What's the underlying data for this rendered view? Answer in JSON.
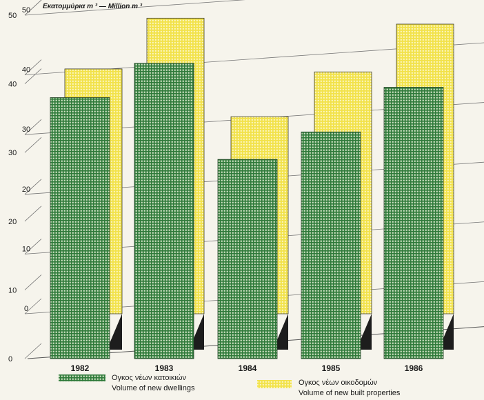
{
  "chart_data": {
    "type": "bar",
    "unit_label": "Εκατομμύρια m ³ — Million m ³",
    "categories": [
      "1982",
      "1983",
      "1984",
      "1985",
      "1986"
    ],
    "series": [
      {
        "name": "Ογκος νέων κατοικιών / Volume of new dwellings",
        "name_el": "Ογκος νέων κατοικιών",
        "name_en": "Volume of new dwellings",
        "color": "#2f7a3a",
        "values": [
          38,
          43,
          29,
          33,
          39.5
        ],
        "ylim": [
          0,
          50
        ],
        "yticks": [
          0,
          10,
          20,
          30,
          40,
          50
        ]
      },
      {
        "name": "Ογκος νέων οικοδομών / Volume of new built properties",
        "name_el": "Ογκος νέων οικοδομών",
        "name_en": "Volume of new built properties",
        "color": "#f2e24a",
        "values": [
          41,
          49.5,
          33,
          40.5,
          48.5
        ],
        "ylim": [
          0,
          50
        ],
        "yticks": [
          0,
          10,
          20,
          30,
          40,
          50
        ]
      }
    ],
    "grid": true,
    "legend_position": "bottom"
  }
}
